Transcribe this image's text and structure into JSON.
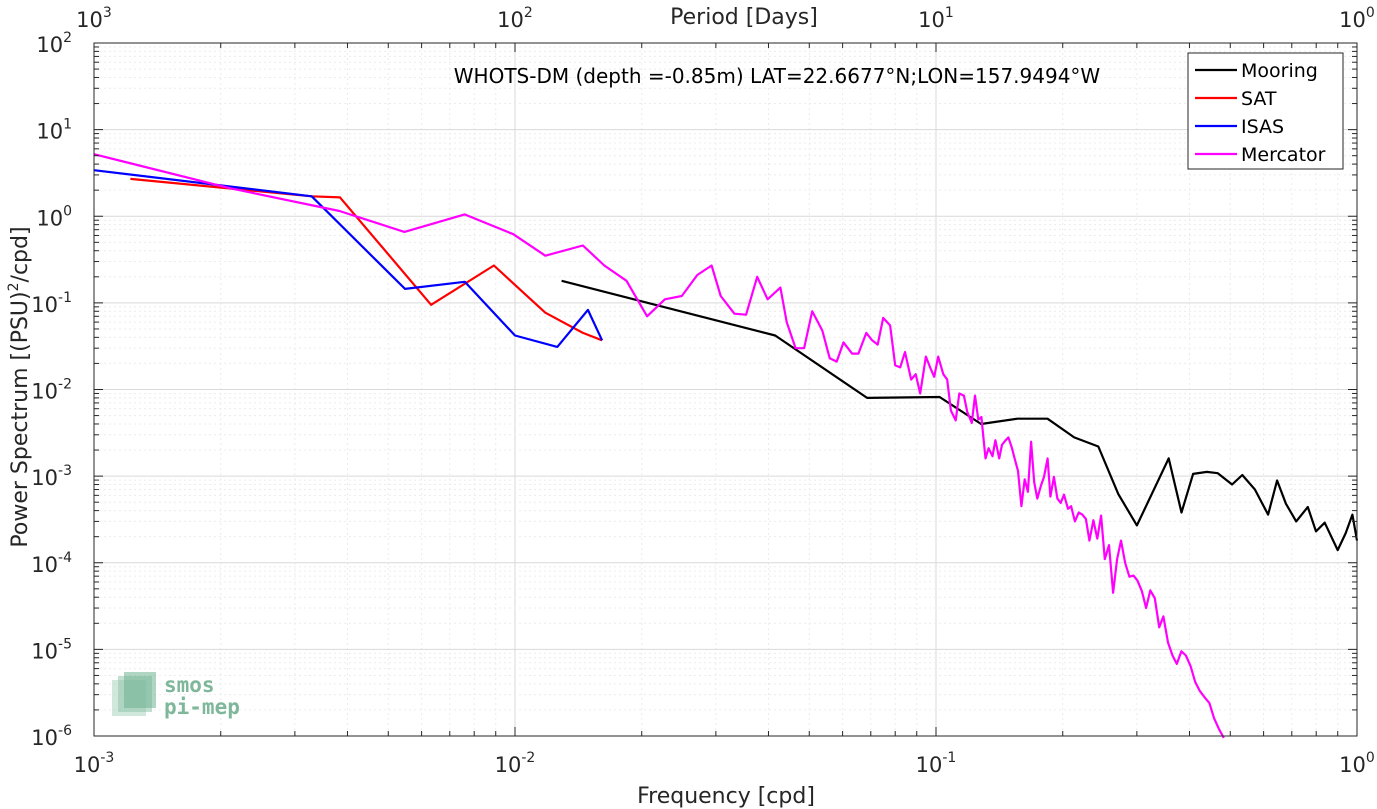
{
  "chart_data": {
    "type": "line",
    "xscale": "log",
    "yscale": "log",
    "xlim": [
      0.001,
      1
    ],
    "ylim": [
      1e-06,
      100
    ],
    "grid": true,
    "xlabel": "Frequency [cpd]",
    "ylabel_parts": [
      "Power Spectrum [(PSU)",
      "2",
      "/cpd]"
    ],
    "top_axis_label": "Period [Days]",
    "annotation": "WHOTS-DM (depth =-0.85m) LAT=22.6677°N;LON=157.9494°W",
    "x_ticks": [
      {
        "value": 0.001,
        "base": "10",
        "exp": "-3"
      },
      {
        "value": 0.01,
        "base": "10",
        "exp": "-2"
      },
      {
        "value": 0.1,
        "base": "10",
        "exp": "-1"
      },
      {
        "value": 1,
        "base": "10",
        "exp": "0"
      }
    ],
    "top_ticks": [
      {
        "value": 0.001,
        "base": "10",
        "exp": "3"
      },
      {
        "value": 0.01,
        "base": "10",
        "exp": "2"
      },
      {
        "value": 0.1,
        "base": "10",
        "exp": "1"
      },
      {
        "value": 1,
        "base": "10",
        "exp": "0"
      }
    ],
    "y_ticks": [
      {
        "value": 100,
        "base": "10",
        "exp": "2"
      },
      {
        "value": 10,
        "base": "10",
        "exp": "1"
      },
      {
        "value": 1,
        "base": "10",
        "exp": "0"
      },
      {
        "value": 0.1,
        "base": "10",
        "exp": "-1"
      },
      {
        "value": 0.01,
        "base": "10",
        "exp": "-2"
      },
      {
        "value": 0.001,
        "base": "10",
        "exp": "-3"
      },
      {
        "value": 0.0001,
        "base": "10",
        "exp": "-4"
      },
      {
        "value": 1e-05,
        "base": "10",
        "exp": "-5"
      },
      {
        "value": 1e-06,
        "base": "10",
        "exp": "-6"
      }
    ],
    "legend_position": "top-right",
    "series": [
      {
        "name": "Mooring",
        "color": "#000000",
        "x": [
          0.0129,
          0.0415,
          0.0686,
          0.102,
          0.128,
          0.156,
          0.184,
          0.213,
          0.243,
          0.271,
          0.3,
          0.357,
          0.383,
          0.408,
          0.44,
          0.467,
          0.505,
          0.534,
          0.572,
          0.615,
          0.646,
          0.678,
          0.717,
          0.764,
          0.799,
          0.838,
          0.9,
          0.94,
          0.975,
          1.0
        ],
        "y": [
          0.18,
          0.042,
          0.008,
          0.0082,
          0.004,
          0.0046,
          0.0046,
          0.0028,
          0.0022,
          0.00062,
          0.00027,
          0.0016,
          0.00038,
          0.00106,
          0.00112,
          0.00108,
          0.0008,
          0.00103,
          0.0007,
          0.00036,
          0.00089,
          0.00048,
          0.0003,
          0.00044,
          0.00023,
          0.00029,
          0.00014,
          0.00022,
          0.00036,
          0.00018
        ]
      },
      {
        "name": "SAT",
        "color": "#ff0000",
        "x": [
          0.00122,
          0.00329,
          0.00384,
          0.00632,
          0.00891,
          0.0118,
          0.0145,
          0.0161
        ],
        "y": [
          2.7,
          1.7,
          1.65,
          0.095,
          0.27,
          0.077,
          0.045,
          0.037
        ]
      },
      {
        "name": "ISAS",
        "color": "#0000ff",
        "x": [
          0.001,
          0.00329,
          0.00548,
          0.0076,
          0.01,
          0.0126,
          0.0149,
          0.0161
        ],
        "y": [
          3.4,
          1.7,
          0.145,
          0.175,
          0.042,
          0.031,
          0.083,
          0.037
        ]
      },
      {
        "name": "Mercator",
        "color": "#ff00ff",
        "x": [
          0.001,
          0.00211,
          0.00383,
          0.00546,
          0.00759,
          0.00991,
          0.0118,
          0.0145,
          0.0163,
          0.0184,
          0.0206,
          0.0227,
          0.0249,
          0.0271,
          0.0293,
          0.0308,
          0.0332,
          0.0354,
          0.0376,
          0.0398,
          0.0427,
          0.0442,
          0.0464,
          0.0486,
          0.0508,
          0.0537,
          0.0559,
          0.0581,
          0.0603,
          0.0632,
          0.0654,
          0.0683,
          0.0705,
          0.0727,
          0.0749,
          0.0778,
          0.08,
          0.0822,
          0.0844,
          0.0873,
          0.0895,
          0.0917,
          0.0946,
          0.0968,
          0.099,
          0.1012,
          0.1041,
          0.1063,
          0.1085,
          0.1114,
          0.1136,
          0.1165,
          0.1187,
          0.1216,
          0.1238,
          0.126,
          0.1282,
          0.1311,
          0.1333,
          0.1362,
          0.1384,
          0.1413,
          0.1435,
          0.1464,
          0.1486,
          0.1515,
          0.1537,
          0.1566,
          0.1595,
          0.1624,
          0.1653,
          0.1682,
          0.1711,
          0.174,
          0.1776,
          0.1805,
          0.1841,
          0.187,
          0.1906,
          0.1942,
          0.1978,
          0.2014,
          0.2058,
          0.2094,
          0.2138,
          0.2182,
          0.2226,
          0.227,
          0.2314,
          0.2365,
          0.2416,
          0.2467,
          0.2518,
          0.2576,
          0.2634,
          0.2692,
          0.275,
          0.2815,
          0.288,
          0.2945,
          0.301,
          0.3083,
          0.3156,
          0.3229,
          0.3309,
          0.3389,
          0.3469,
          0.3557,
          0.3645,
          0.3733,
          0.3828,
          0.3923,
          0.4025,
          0.4127,
          0.4236,
          0.4345,
          0.4461,
          0.4577,
          0.4701,
          0.4825
        ],
        "y": [
          5.2,
          2.1,
          1.15,
          0.66,
          1.05,
          0.62,
          0.35,
          0.46,
          0.27,
          0.18,
          0.07,
          0.11,
          0.12,
          0.21,
          0.27,
          0.12,
          0.075,
          0.073,
          0.2,
          0.11,
          0.15,
          0.06,
          0.03,
          0.03,
          0.08,
          0.048,
          0.023,
          0.021,
          0.035,
          0.026,
          0.026,
          0.045,
          0.037,
          0.033,
          0.067,
          0.055,
          0.019,
          0.018,
          0.027,
          0.013,
          0.015,
          0.009,
          0.024,
          0.018,
          0.014,
          0.024,
          0.015,
          0.013,
          0.0057,
          0.0044,
          0.009,
          0.0085,
          0.0055,
          0.0041,
          0.0085,
          0.0045,
          0.0048,
          0.0016,
          0.0021,
          0.0017,
          0.0026,
          0.0016,
          0.0023,
          0.0026,
          0.0028,
          0.0021,
          0.0016,
          0.00115,
          0.00045,
          0.00092,
          0.00066,
          0.0025,
          0.00085,
          0.00055,
          0.00078,
          0.00098,
          0.0016,
          0.00058,
          0.00098,
          0.00055,
          0.00049,
          0.00061,
          0.00042,
          0.00045,
          0.0003,
          0.00038,
          0.00036,
          0.00032,
          0.00018,
          0.00031,
          0.00019,
          0.00035,
          0.00011,
          0.00016,
          4.5e-05,
          0.00011,
          0.00018,
          9.9e-05,
          6.9e-05,
          7.1e-05,
          6.2e-05,
          4.7e-05,
          3e-05,
          4.8e-05,
          3.9e-05,
          1.8e-05,
          2.4e-05,
          1.2e-05,
          8.5e-06,
          6.8e-06,
          9.5e-06,
          8.5e-06,
          6.4e-06,
          4.2e-06,
          3.3e-06,
          2.8e-06,
          2.4e-06,
          1.6e-06,
          1.2e-06,
          9.5e-07
        ]
      }
    ]
  },
  "logo": {
    "line1": "smos",
    "line2": "pi-mep",
    "color": "#7fb79a"
  }
}
